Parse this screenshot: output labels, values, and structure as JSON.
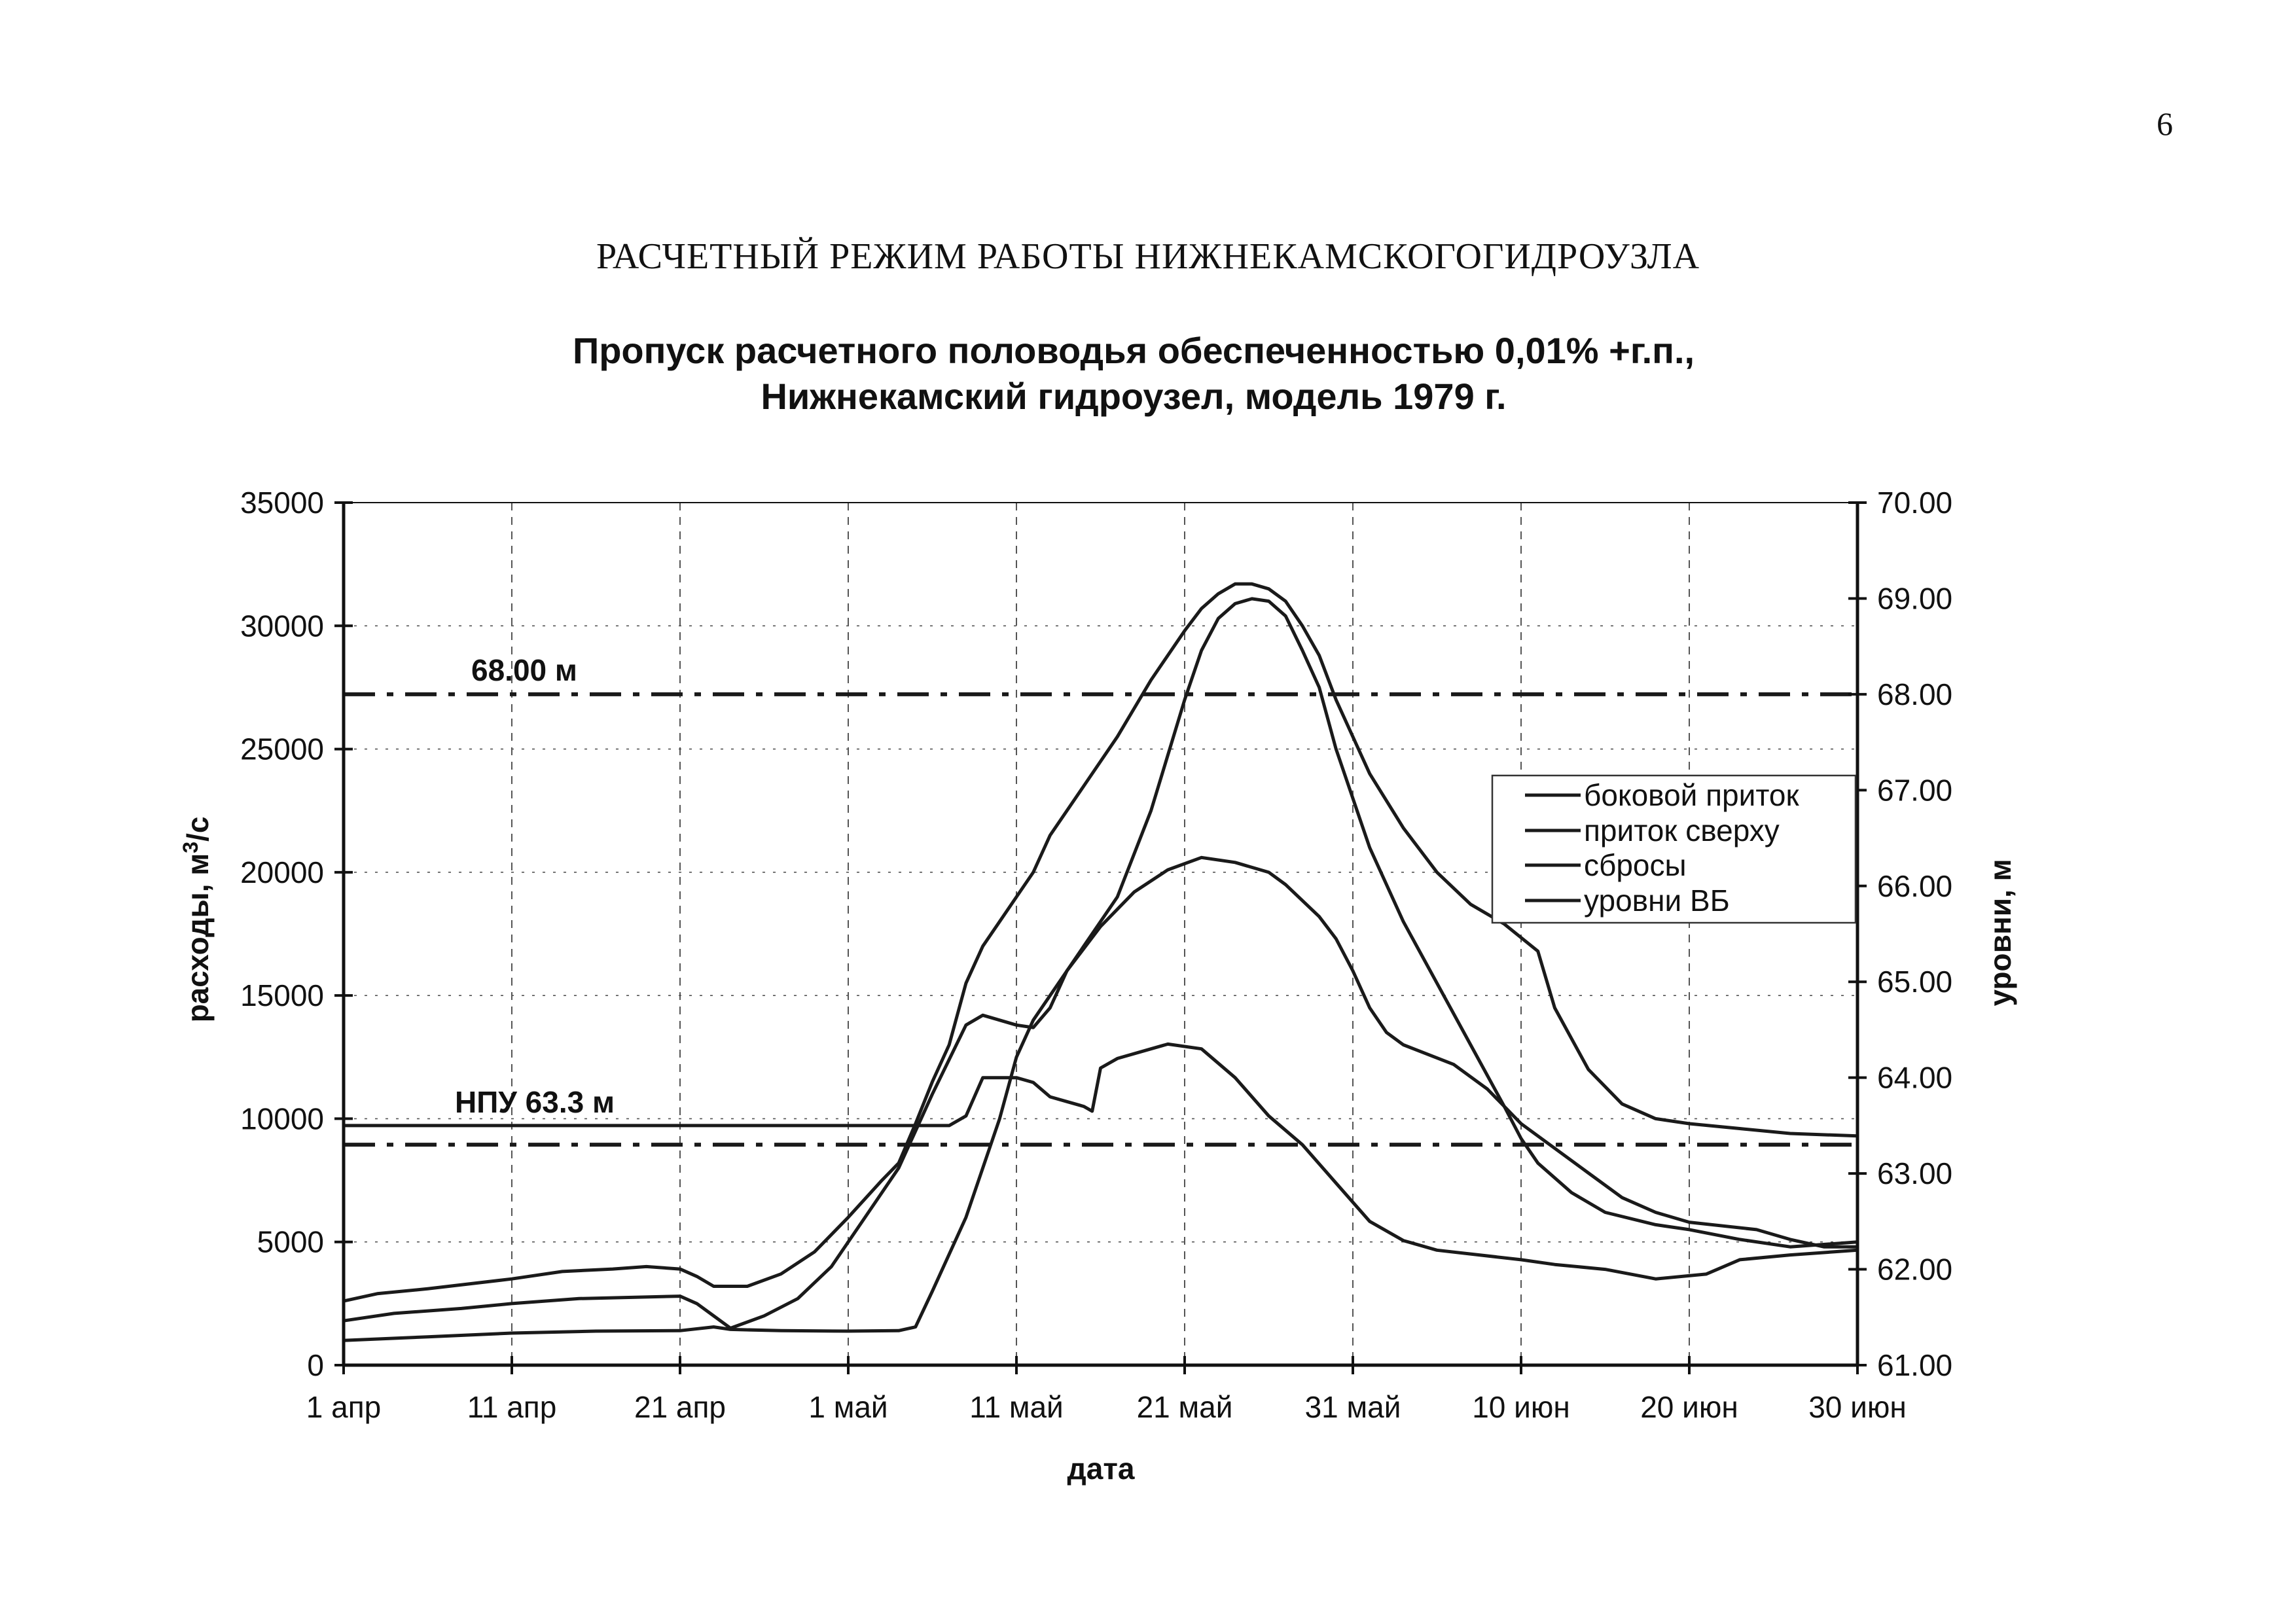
{
  "page": {
    "number": "6",
    "doc_title": "РАСЧЕТНЫЙ РЕЖИМ РАБОТЫ НИЖНЕКАМСКОГОГИДРОУЗЛА"
  },
  "colors": {
    "line": "#1a1a1a",
    "grid": "#555555"
  },
  "chart_data": {
    "type": "line",
    "title_lines": [
      "Пропуск расчетного половодья обеспеченностью 0,01% +г.п.,",
      "Нижнекамский гидроузел, модель 1979 г."
    ],
    "xlabel": "дата",
    "ylabel_left": "расходы, м",
    "ylabel_left_sup": "3",
    "ylabel_left_suffix": "/с",
    "ylabel_right": "уровни, м",
    "x_range": [
      0,
      90
    ],
    "x_ticks": [
      {
        "day": 0,
        "label": "1 апр"
      },
      {
        "day": 10,
        "label": "11 апр"
      },
      {
        "day": 20,
        "label": "21 апр"
      },
      {
        "day": 30,
        "label": "1 май"
      },
      {
        "day": 40,
        "label": "11 май"
      },
      {
        "day": 50,
        "label": "21 май"
      },
      {
        "day": 60,
        "label": "31 май"
      },
      {
        "day": 70,
        "label": "10 июн"
      },
      {
        "day": 80,
        "label": "20 июн"
      },
      {
        "day": 90,
        "label": "30 июн"
      }
    ],
    "y_left": {
      "min": 0,
      "max": 35000,
      "ticks": [
        "0",
        "5000",
        "10000",
        "15000",
        "20000",
        "25000",
        "30000",
        "35000"
      ]
    },
    "y_right": {
      "min": 61.0,
      "max": 70.0,
      "ticks": [
        "61.00",
        "62.00",
        "63.00",
        "64.00",
        "65.00",
        "66.00",
        "67.00",
        "68.00",
        "69.00",
        "70.00"
      ]
    },
    "grid": true,
    "legend_position": "right",
    "reference_lines": [
      {
        "name": "level-68",
        "axis": "right",
        "value": 68.0,
        "label": "68.00 м",
        "style": "dash-dot"
      },
      {
        "name": "npu",
        "axis": "right",
        "value": 63.3,
        "label": "НПУ 63.3 м",
        "style": "dash-dot"
      }
    ],
    "series": [
      {
        "name": "боковой приток",
        "axis": "left",
        "points": [
          [
            0,
            1000
          ],
          [
            5,
            1150
          ],
          [
            10,
            1300
          ],
          [
            15,
            1380
          ],
          [
            20,
            1400
          ],
          [
            22,
            1550
          ],
          [
            23,
            1450
          ],
          [
            26,
            1400
          ],
          [
            30,
            1380
          ],
          [
            33,
            1400
          ],
          [
            34,
            1550
          ],
          [
            35,
            3000
          ],
          [
            37,
            6000
          ],
          [
            39,
            10000
          ],
          [
            40,
            12500
          ],
          [
            41,
            14000
          ],
          [
            43,
            16000
          ],
          [
            46,
            19000
          ],
          [
            48,
            22500
          ],
          [
            50,
            27000
          ],
          [
            51,
            29000
          ],
          [
            52,
            30300
          ],
          [
            53,
            30900
          ],
          [
            54,
            31100
          ],
          [
            55,
            31000
          ],
          [
            56,
            30400
          ],
          [
            57,
            29000
          ],
          [
            58,
            27500
          ],
          [
            59,
            25000
          ],
          [
            61,
            21000
          ],
          [
            63,
            18000
          ],
          [
            65,
            15500
          ],
          [
            67,
            13000
          ],
          [
            69,
            10500
          ],
          [
            70,
            9200
          ],
          [
            71,
            8200
          ],
          [
            73,
            7000
          ],
          [
            75,
            6200
          ],
          [
            78,
            5700
          ],
          [
            80,
            5500
          ],
          [
            83,
            5100
          ],
          [
            86,
            4800
          ],
          [
            88,
            4900
          ],
          [
            90,
            5000
          ]
        ]
      },
      {
        "name": "приток сверху",
        "axis": "left",
        "points": [
          [
            0,
            2600
          ],
          [
            2,
            2900
          ],
          [
            5,
            3100
          ],
          [
            10,
            3500
          ],
          [
            13,
            3800
          ],
          [
            16,
            3900
          ],
          [
            18,
            4000
          ],
          [
            20,
            3900
          ],
          [
            21,
            3600
          ],
          [
            22,
            3200
          ],
          [
            24,
            3200
          ],
          [
            26,
            3700
          ],
          [
            28,
            4600
          ],
          [
            30,
            6000
          ],
          [
            32,
            7500
          ],
          [
            33,
            8200
          ],
          [
            34,
            9800
          ],
          [
            35,
            11500
          ],
          [
            36,
            13000
          ],
          [
            37,
            15500
          ],
          [
            38,
            17000
          ],
          [
            39,
            18000
          ],
          [
            40,
            19000
          ],
          [
            41,
            20000
          ],
          [
            42,
            21500
          ],
          [
            44,
            23500
          ],
          [
            46,
            25500
          ],
          [
            48,
            27800
          ],
          [
            50,
            29800
          ],
          [
            51,
            30700
          ],
          [
            52,
            31300
          ],
          [
            53,
            31700
          ],
          [
            54,
            31700
          ],
          [
            55,
            31500
          ],
          [
            56,
            31000
          ],
          [
            57,
            30000
          ],
          [
            58,
            28800
          ],
          [
            59,
            27000
          ],
          [
            61,
            24000
          ],
          [
            63,
            21800
          ],
          [
            65,
            20000
          ],
          [
            67,
            18700
          ],
          [
            69,
            17900
          ],
          [
            71,
            16800
          ],
          [
            72,
            14500
          ],
          [
            74,
            12000
          ],
          [
            76,
            10600
          ],
          [
            78,
            10000
          ],
          [
            80,
            9800
          ],
          [
            83,
            9600
          ],
          [
            86,
            9400
          ],
          [
            90,
            9300
          ]
        ]
      },
      {
        "name": "сбросы",
        "axis": "left",
        "points": [
          [
            0,
            1800
          ],
          [
            3,
            2100
          ],
          [
            7,
            2300
          ],
          [
            10,
            2500
          ],
          [
            14,
            2700
          ],
          [
            20,
            2800
          ],
          [
            21,
            2500
          ],
          [
            22,
            2000
          ],
          [
            23,
            1500
          ],
          [
            25,
            2000
          ],
          [
            27,
            2700
          ],
          [
            29,
            4000
          ],
          [
            31,
            6000
          ],
          [
            33,
            8000
          ],
          [
            35,
            11000
          ],
          [
            37,
            13800
          ],
          [
            38,
            14200
          ],
          [
            39,
            14000
          ],
          [
            40,
            13800
          ],
          [
            41,
            13700
          ],
          [
            42,
            14500
          ],
          [
            43,
            16000
          ],
          [
            45,
            17800
          ],
          [
            47,
            19200
          ],
          [
            49,
            20100
          ],
          [
            51,
            20600
          ],
          [
            53,
            20400
          ],
          [
            55,
            20000
          ],
          [
            56,
            19500
          ],
          [
            58,
            18200
          ],
          [
            59,
            17300
          ],
          [
            60,
            16000
          ],
          [
            61,
            14500
          ],
          [
            62,
            13500
          ],
          [
            63,
            13000
          ],
          [
            66,
            12200
          ],
          [
            68,
            11200
          ],
          [
            70,
            9800
          ],
          [
            72,
            8800
          ],
          [
            74,
            7800
          ],
          [
            76,
            6800
          ],
          [
            78,
            6200
          ],
          [
            80,
            5800
          ],
          [
            84,
            5500
          ],
          [
            86,
            5100
          ],
          [
            88,
            4800
          ],
          [
            90,
            4800
          ]
        ]
      },
      {
        "name": "уровни ВБ",
        "axis": "right",
        "points": [
          [
            0,
            63.5
          ],
          [
            10,
            63.5
          ],
          [
            20,
            63.5
          ],
          [
            30,
            63.5
          ],
          [
            36,
            63.5
          ],
          [
            37,
            63.6
          ],
          [
            38,
            64.0
          ],
          [
            40,
            64.0
          ],
          [
            41,
            63.95
          ],
          [
            42,
            63.8
          ],
          [
            43,
            63.75
          ],
          [
            44,
            63.7
          ],
          [
            44.5,
            63.65
          ],
          [
            45,
            64.1
          ],
          [
            46,
            64.2
          ],
          [
            48,
            64.3
          ],
          [
            49,
            64.35
          ],
          [
            51,
            64.3
          ],
          [
            53,
            64.0
          ],
          [
            55,
            63.6
          ],
          [
            57,
            63.3
          ],
          [
            59,
            62.9
          ],
          [
            61,
            62.5
          ],
          [
            63,
            62.3
          ],
          [
            65,
            62.2
          ],
          [
            70,
            62.1
          ],
          [
            72,
            62.05
          ],
          [
            75,
            62.0
          ],
          [
            78,
            61.9
          ],
          [
            81,
            61.95
          ],
          [
            83,
            62.1
          ],
          [
            86,
            62.15
          ],
          [
            90,
            62.2
          ]
        ]
      }
    ]
  }
}
